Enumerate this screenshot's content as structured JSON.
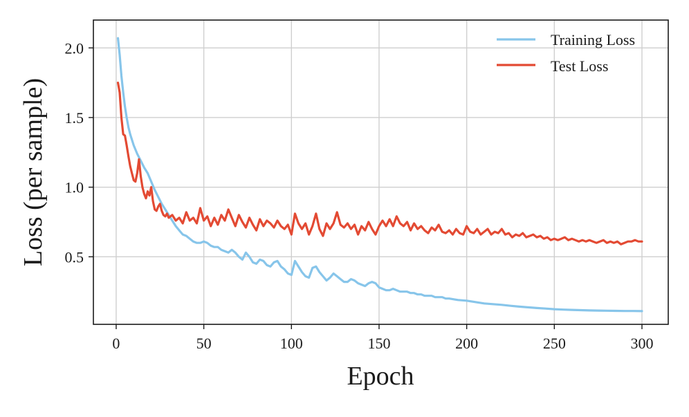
{
  "chart_data": {
    "type": "line",
    "title": "",
    "xlabel": "Epoch",
    "ylabel": "Loss (per sample)",
    "xlim": [
      -13,
      315
    ],
    "ylim": [
      0.015,
      2.2
    ],
    "xticks": [
      0,
      50,
      100,
      150,
      200,
      250,
      300
    ],
    "yticks": [
      0.5,
      1.0,
      1.5,
      2.0
    ],
    "xtick_labels": [
      "0",
      "50",
      "100",
      "150",
      "200",
      "250",
      "300"
    ],
    "ytick_labels": [
      "0.5",
      "1.0",
      "1.5",
      "2.0"
    ],
    "grid": true,
    "legend_position": "top-right",
    "series": [
      {
        "name": "Training Loss",
        "color": "#87c5ea",
        "x": [
          1,
          2,
          3,
          4,
          5,
          6,
          7,
          8,
          10,
          12,
          14,
          16,
          18,
          20,
          22,
          24,
          26,
          28,
          30,
          32,
          34,
          36,
          38,
          40,
          42,
          44,
          46,
          48,
          50,
          52,
          54,
          56,
          58,
          60,
          62,
          64,
          66,
          68,
          70,
          72,
          74,
          76,
          78,
          80,
          82,
          84,
          86,
          88,
          90,
          92,
          94,
          96,
          98,
          100,
          102,
          104,
          106,
          108,
          110,
          112,
          114,
          116,
          118,
          120,
          122,
          124,
          126,
          128,
          130,
          132,
          134,
          136,
          138,
          140,
          142,
          144,
          146,
          148,
          150,
          152,
          154,
          156,
          158,
          160,
          162,
          164,
          166,
          168,
          170,
          172,
          174,
          176,
          178,
          180,
          182,
          184,
          186,
          188,
          190,
          195,
          200,
          205,
          210,
          215,
          220,
          225,
          230,
          235,
          240,
          245,
          250,
          255,
          260,
          265,
          270,
          275,
          280,
          285,
          290,
          295,
          300
        ],
        "y": [
          2.07,
          1.95,
          1.8,
          1.68,
          1.58,
          1.5,
          1.43,
          1.38,
          1.3,
          1.24,
          1.19,
          1.14,
          1.1,
          1.04,
          0.98,
          0.93,
          0.88,
          0.84,
          0.8,
          0.76,
          0.72,
          0.69,
          0.66,
          0.65,
          0.63,
          0.61,
          0.6,
          0.6,
          0.61,
          0.6,
          0.58,
          0.57,
          0.57,
          0.55,
          0.54,
          0.53,
          0.55,
          0.53,
          0.5,
          0.48,
          0.53,
          0.5,
          0.46,
          0.45,
          0.48,
          0.47,
          0.44,
          0.43,
          0.46,
          0.47,
          0.43,
          0.41,
          0.38,
          0.37,
          0.47,
          0.43,
          0.39,
          0.36,
          0.35,
          0.42,
          0.43,
          0.39,
          0.36,
          0.33,
          0.35,
          0.38,
          0.36,
          0.34,
          0.32,
          0.32,
          0.34,
          0.33,
          0.31,
          0.3,
          0.29,
          0.31,
          0.32,
          0.31,
          0.28,
          0.27,
          0.26,
          0.26,
          0.27,
          0.26,
          0.25,
          0.25,
          0.25,
          0.24,
          0.24,
          0.23,
          0.23,
          0.22,
          0.22,
          0.22,
          0.21,
          0.21,
          0.21,
          0.2,
          0.2,
          0.19,
          0.185,
          0.175,
          0.165,
          0.16,
          0.155,
          0.148,
          0.142,
          0.137,
          0.132,
          0.128,
          0.124,
          0.121,
          0.119,
          0.117,
          0.115,
          0.114,
          0.113,
          0.112,
          0.111,
          0.111,
          0.11
        ]
      },
      {
        "name": "Test Loss",
        "color": "#e34a33",
        "x": [
          1,
          2,
          3,
          4,
          5,
          6,
          7,
          8,
          9,
          10,
          11,
          12,
          13,
          14,
          15,
          16,
          17,
          18,
          19,
          20,
          21,
          22,
          23,
          24,
          25,
          26,
          27,
          28,
          29,
          30,
          32,
          34,
          36,
          38,
          40,
          42,
          44,
          46,
          48,
          50,
          52,
          54,
          56,
          58,
          60,
          62,
          64,
          66,
          68,
          70,
          72,
          74,
          76,
          78,
          80,
          82,
          84,
          86,
          88,
          90,
          92,
          94,
          96,
          98,
          100,
          102,
          104,
          106,
          108,
          110,
          112,
          114,
          116,
          118,
          120,
          122,
          124,
          126,
          128,
          130,
          132,
          134,
          136,
          138,
          140,
          142,
          144,
          146,
          148,
          150,
          152,
          154,
          156,
          158,
          160,
          162,
          164,
          166,
          168,
          170,
          172,
          174,
          176,
          178,
          180,
          182,
          184,
          186,
          188,
          190,
          192,
          194,
          196,
          198,
          200,
          202,
          204,
          206,
          208,
          210,
          212,
          214,
          216,
          218,
          220,
          222,
          224,
          226,
          228,
          230,
          232,
          234,
          236,
          238,
          240,
          242,
          244,
          246,
          248,
          250,
          252,
          254,
          256,
          258,
          260,
          262,
          264,
          266,
          268,
          270,
          272,
          274,
          276,
          278,
          280,
          282,
          284,
          286,
          288,
          290,
          292,
          294,
          296,
          298,
          300
        ],
        "y": [
          1.75,
          1.68,
          1.5,
          1.38,
          1.37,
          1.3,
          1.22,
          1.15,
          1.1,
          1.05,
          1.04,
          1.1,
          1.2,
          1.08,
          1.0,
          0.95,
          0.92,
          0.97,
          0.94,
          1.0,
          0.9,
          0.84,
          0.83,
          0.86,
          0.88,
          0.83,
          0.8,
          0.79,
          0.81,
          0.78,
          0.8,
          0.76,
          0.78,
          0.74,
          0.82,
          0.76,
          0.78,
          0.74,
          0.85,
          0.76,
          0.79,
          0.72,
          0.78,
          0.73,
          0.8,
          0.76,
          0.84,
          0.78,
          0.72,
          0.8,
          0.75,
          0.71,
          0.78,
          0.73,
          0.69,
          0.77,
          0.72,
          0.76,
          0.74,
          0.71,
          0.76,
          0.72,
          0.7,
          0.73,
          0.66,
          0.81,
          0.74,
          0.7,
          0.74,
          0.66,
          0.72,
          0.81,
          0.7,
          0.65,
          0.74,
          0.7,
          0.74,
          0.82,
          0.73,
          0.71,
          0.74,
          0.7,
          0.73,
          0.66,
          0.72,
          0.69,
          0.75,
          0.7,
          0.66,
          0.72,
          0.76,
          0.72,
          0.77,
          0.72,
          0.79,
          0.74,
          0.72,
          0.75,
          0.69,
          0.74,
          0.7,
          0.72,
          0.69,
          0.67,
          0.71,
          0.69,
          0.73,
          0.68,
          0.67,
          0.69,
          0.66,
          0.7,
          0.67,
          0.66,
          0.72,
          0.68,
          0.67,
          0.7,
          0.66,
          0.68,
          0.7,
          0.66,
          0.68,
          0.67,
          0.7,
          0.66,
          0.67,
          0.64,
          0.66,
          0.65,
          0.67,
          0.64,
          0.65,
          0.66,
          0.64,
          0.65,
          0.63,
          0.64,
          0.62,
          0.63,
          0.62,
          0.63,
          0.64,
          0.62,
          0.63,
          0.62,
          0.61,
          0.62,
          0.61,
          0.62,
          0.61,
          0.6,
          0.61,
          0.62,
          0.6,
          0.61,
          0.6,
          0.61,
          0.59,
          0.6,
          0.61,
          0.61,
          0.62,
          0.61,
          0.61
        ]
      }
    ]
  }
}
